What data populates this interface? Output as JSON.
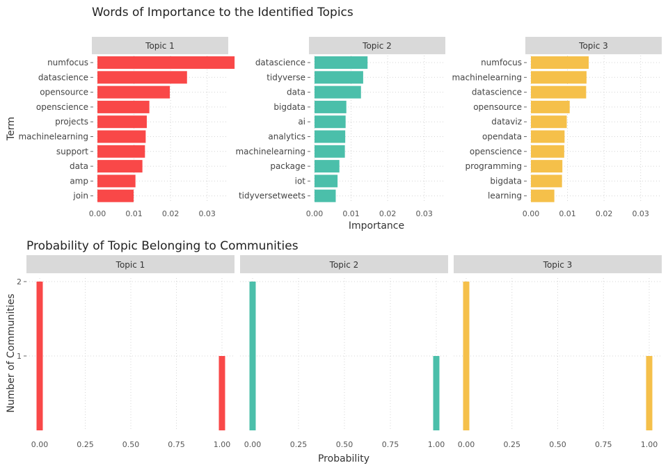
{
  "colors": {
    "topic_1": "#f94848",
    "topic_2": "#4bbfaa",
    "topic_3": "#f5c04a",
    "strip": "#d9d9d9",
    "grid": "#d4d4d4",
    "text": "#444444"
  },
  "chart_data": [
    {
      "type": "bar",
      "orientation": "horizontal",
      "title": "Words of Importance to the Identified Topics",
      "xlabel": "Importance",
      "ylabel": "Term",
      "xlim": [
        0,
        0.039
      ],
      "x_ticks": [
        "0.00",
        "0.01",
        "0.02",
        "0.03"
      ],
      "grid": "dotted",
      "facets": [
        {
          "label": "Topic 1",
          "color": "#f94848",
          "terms": [
            "numfocus",
            "datascience",
            "opensource",
            "openscience",
            "projects",
            "machinelearning",
            "support",
            "data",
            "amp",
            "join"
          ],
          "values": [
            0.0375,
            0.0245,
            0.0198,
            0.0142,
            0.0135,
            0.0132,
            0.013,
            0.0123,
            0.0104,
            0.0099
          ]
        },
        {
          "label": "Topic 2",
          "color": "#4bbfaa",
          "terms": [
            "datascience",
            "tidyverse",
            "data",
            "bigdata",
            "ai",
            "analytics",
            "machinelearning",
            "package",
            "iot",
            "tidyversetweets"
          ],
          "values": [
            0.0145,
            0.0133,
            0.0127,
            0.0087,
            0.0085,
            0.0084,
            0.0083,
            0.0068,
            0.0063,
            0.0058
          ]
        },
        {
          "label": "Topic 3",
          "color": "#f5c04a",
          "terms": [
            "numfocus",
            "machinelearning",
            "datascience",
            "opensource",
            "dataviz",
            "opendata",
            "openscience",
            "programming",
            "bigdata",
            "learning"
          ],
          "values": [
            0.0158,
            0.0152,
            0.0151,
            0.0106,
            0.0098,
            0.0092,
            0.0091,
            0.0086,
            0.0085,
            0.0064
          ]
        }
      ]
    },
    {
      "type": "bar",
      "title": "Probability of Topic Belonging to Communities",
      "xlabel": "Probability",
      "ylabel": "Number of Communities",
      "xlim": [
        -0.05,
        1.05
      ],
      "ylim": [
        0,
        2.05
      ],
      "x_ticks": [
        "0.00",
        "0.25",
        "0.50",
        "0.75",
        "1.00"
      ],
      "y_ticks": [
        "1",
        "2"
      ],
      "grid": "dotted",
      "facets": [
        {
          "label": "Topic 1",
          "color": "#f94848",
          "x": [
            0,
            1
          ],
          "values": [
            2,
            1
          ]
        },
        {
          "label": "Topic 2",
          "color": "#4bbfaa",
          "x": [
            0,
            1
          ],
          "values": [
            2,
            1
          ]
        },
        {
          "label": "Topic 3",
          "color": "#f5c04a",
          "x": [
            0,
            1
          ],
          "values": [
            2,
            1
          ]
        }
      ]
    }
  ]
}
